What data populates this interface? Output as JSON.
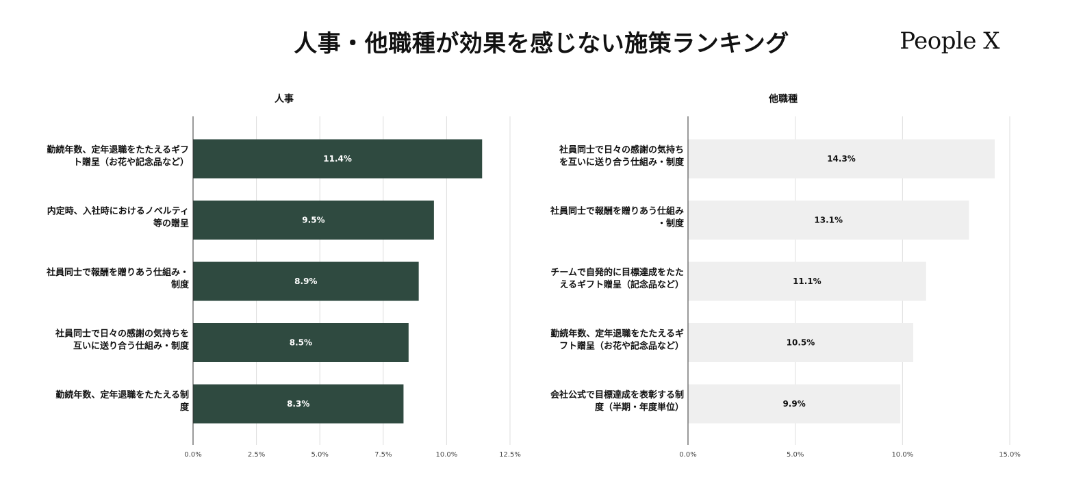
{
  "title": "人事・他職種が効果を感じない施策ランキング",
  "brand": "People X",
  "colors": {
    "hr_bar": "#2f4a40",
    "other_bar": "#efefef",
    "hr_label": "#ffffff",
    "other_label": "#111111"
  },
  "chart_data": [
    {
      "type": "bar",
      "orientation": "horizontal",
      "title": "人事",
      "categories": [
        [
          "勤続年数、定年退職をたたえるギフ",
          "ト贈呈（お花や記念品など）"
        ],
        [
          "内定時、入社時におけるノベルティ",
          "等の贈呈"
        ],
        [
          "社員同士で報酬を贈りあう仕組み・",
          "制度"
        ],
        [
          "社員同士で日々の感謝の気持ちを",
          "互いに送り合う仕組み・制度"
        ],
        [
          "勤続年数、定年退職をたたえる制",
          "度"
        ]
      ],
      "values": [
        11.4,
        9.5,
        8.9,
        8.5,
        8.3
      ],
      "value_labels": [
        "11.4%",
        "9.5%",
        "8.9%",
        "8.5%",
        "8.3%"
      ],
      "xlim": [
        0,
        12.5
      ],
      "ticks": [
        0,
        2.5,
        5,
        7.5,
        10,
        12.5
      ],
      "tick_labels": [
        "0.0%",
        "2.5%",
        "5.0%",
        "7.5%",
        "10.0%",
        "12.5%"
      ],
      "xlabel": "",
      "ylabel": "",
      "grid": true
    },
    {
      "type": "bar",
      "orientation": "horizontal",
      "title": "他職種",
      "categories": [
        [
          "社員同士で日々の感謝の気持ち",
          "を互いに送り合う仕組み・制度"
        ],
        [
          "社員同士で報酬を贈りあう仕組み",
          "・制度"
        ],
        [
          "チームで自発的に目標達成をたた",
          "えるギフト贈呈（記念品など）"
        ],
        [
          "勤続年数、定年退職をたたえるギ",
          "フト贈呈（お花や記念品など）"
        ],
        [
          "会社公式で目標達成を表彰する制",
          "度（半期・年度単位）"
        ]
      ],
      "values": [
        14.3,
        13.1,
        11.1,
        10.5,
        9.9
      ],
      "value_labels": [
        "14.3%",
        "13.1%",
        "11.1%",
        "10.5%",
        "9.9%"
      ],
      "xlim": [
        0,
        15
      ],
      "ticks": [
        0,
        5,
        10,
        15
      ],
      "tick_labels": [
        "0.0%",
        "5.0%",
        "10.0%",
        "15.0%"
      ],
      "xlabel": "",
      "ylabel": "",
      "grid": true
    }
  ]
}
